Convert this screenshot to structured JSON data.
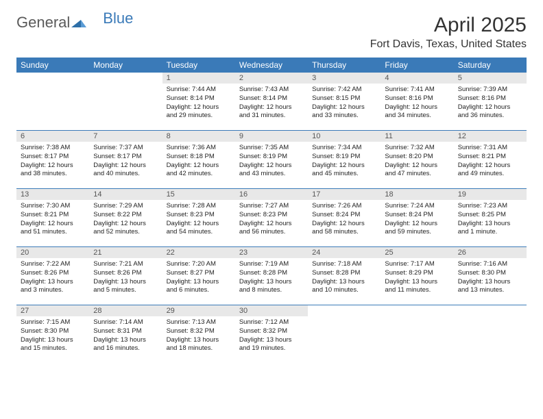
{
  "brand": {
    "part1": "General",
    "part2": "Blue"
  },
  "title": "April 2025",
  "location": "Fort Davis, Texas, United States",
  "colors": {
    "header_bg": "#3a7ab8",
    "header_text": "#ffffff",
    "daynum_bg": "#e8e8e8",
    "border": "#3a7ab8"
  },
  "day_headers": [
    "Sunday",
    "Monday",
    "Tuesday",
    "Wednesday",
    "Thursday",
    "Friday",
    "Saturday"
  ],
  "weeks": [
    [
      {
        "day": "",
        "sunrise": "",
        "sunset": "",
        "daylight": ""
      },
      {
        "day": "",
        "sunrise": "",
        "sunset": "",
        "daylight": ""
      },
      {
        "day": "1",
        "sunrise": "Sunrise: 7:44 AM",
        "sunset": "Sunset: 8:14 PM",
        "daylight": "Daylight: 12 hours and 29 minutes."
      },
      {
        "day": "2",
        "sunrise": "Sunrise: 7:43 AM",
        "sunset": "Sunset: 8:14 PM",
        "daylight": "Daylight: 12 hours and 31 minutes."
      },
      {
        "day": "3",
        "sunrise": "Sunrise: 7:42 AM",
        "sunset": "Sunset: 8:15 PM",
        "daylight": "Daylight: 12 hours and 33 minutes."
      },
      {
        "day": "4",
        "sunrise": "Sunrise: 7:41 AM",
        "sunset": "Sunset: 8:16 PM",
        "daylight": "Daylight: 12 hours and 34 minutes."
      },
      {
        "day": "5",
        "sunrise": "Sunrise: 7:39 AM",
        "sunset": "Sunset: 8:16 PM",
        "daylight": "Daylight: 12 hours and 36 minutes."
      }
    ],
    [
      {
        "day": "6",
        "sunrise": "Sunrise: 7:38 AM",
        "sunset": "Sunset: 8:17 PM",
        "daylight": "Daylight: 12 hours and 38 minutes."
      },
      {
        "day": "7",
        "sunrise": "Sunrise: 7:37 AM",
        "sunset": "Sunset: 8:17 PM",
        "daylight": "Daylight: 12 hours and 40 minutes."
      },
      {
        "day": "8",
        "sunrise": "Sunrise: 7:36 AM",
        "sunset": "Sunset: 8:18 PM",
        "daylight": "Daylight: 12 hours and 42 minutes."
      },
      {
        "day": "9",
        "sunrise": "Sunrise: 7:35 AM",
        "sunset": "Sunset: 8:19 PM",
        "daylight": "Daylight: 12 hours and 43 minutes."
      },
      {
        "day": "10",
        "sunrise": "Sunrise: 7:34 AM",
        "sunset": "Sunset: 8:19 PM",
        "daylight": "Daylight: 12 hours and 45 minutes."
      },
      {
        "day": "11",
        "sunrise": "Sunrise: 7:32 AM",
        "sunset": "Sunset: 8:20 PM",
        "daylight": "Daylight: 12 hours and 47 minutes."
      },
      {
        "day": "12",
        "sunrise": "Sunrise: 7:31 AM",
        "sunset": "Sunset: 8:21 PM",
        "daylight": "Daylight: 12 hours and 49 minutes."
      }
    ],
    [
      {
        "day": "13",
        "sunrise": "Sunrise: 7:30 AM",
        "sunset": "Sunset: 8:21 PM",
        "daylight": "Daylight: 12 hours and 51 minutes."
      },
      {
        "day": "14",
        "sunrise": "Sunrise: 7:29 AM",
        "sunset": "Sunset: 8:22 PM",
        "daylight": "Daylight: 12 hours and 52 minutes."
      },
      {
        "day": "15",
        "sunrise": "Sunrise: 7:28 AM",
        "sunset": "Sunset: 8:23 PM",
        "daylight": "Daylight: 12 hours and 54 minutes."
      },
      {
        "day": "16",
        "sunrise": "Sunrise: 7:27 AM",
        "sunset": "Sunset: 8:23 PM",
        "daylight": "Daylight: 12 hours and 56 minutes."
      },
      {
        "day": "17",
        "sunrise": "Sunrise: 7:26 AM",
        "sunset": "Sunset: 8:24 PM",
        "daylight": "Daylight: 12 hours and 58 minutes."
      },
      {
        "day": "18",
        "sunrise": "Sunrise: 7:24 AM",
        "sunset": "Sunset: 8:24 PM",
        "daylight": "Daylight: 12 hours and 59 minutes."
      },
      {
        "day": "19",
        "sunrise": "Sunrise: 7:23 AM",
        "sunset": "Sunset: 8:25 PM",
        "daylight": "Daylight: 13 hours and 1 minute."
      }
    ],
    [
      {
        "day": "20",
        "sunrise": "Sunrise: 7:22 AM",
        "sunset": "Sunset: 8:26 PM",
        "daylight": "Daylight: 13 hours and 3 minutes."
      },
      {
        "day": "21",
        "sunrise": "Sunrise: 7:21 AM",
        "sunset": "Sunset: 8:26 PM",
        "daylight": "Daylight: 13 hours and 5 minutes."
      },
      {
        "day": "22",
        "sunrise": "Sunrise: 7:20 AM",
        "sunset": "Sunset: 8:27 PM",
        "daylight": "Daylight: 13 hours and 6 minutes."
      },
      {
        "day": "23",
        "sunrise": "Sunrise: 7:19 AM",
        "sunset": "Sunset: 8:28 PM",
        "daylight": "Daylight: 13 hours and 8 minutes."
      },
      {
        "day": "24",
        "sunrise": "Sunrise: 7:18 AM",
        "sunset": "Sunset: 8:28 PM",
        "daylight": "Daylight: 13 hours and 10 minutes."
      },
      {
        "day": "25",
        "sunrise": "Sunrise: 7:17 AM",
        "sunset": "Sunset: 8:29 PM",
        "daylight": "Daylight: 13 hours and 11 minutes."
      },
      {
        "day": "26",
        "sunrise": "Sunrise: 7:16 AM",
        "sunset": "Sunset: 8:30 PM",
        "daylight": "Daylight: 13 hours and 13 minutes."
      }
    ],
    [
      {
        "day": "27",
        "sunrise": "Sunrise: 7:15 AM",
        "sunset": "Sunset: 8:30 PM",
        "daylight": "Daylight: 13 hours and 15 minutes."
      },
      {
        "day": "28",
        "sunrise": "Sunrise: 7:14 AM",
        "sunset": "Sunset: 8:31 PM",
        "daylight": "Daylight: 13 hours and 16 minutes."
      },
      {
        "day": "29",
        "sunrise": "Sunrise: 7:13 AM",
        "sunset": "Sunset: 8:32 PM",
        "daylight": "Daylight: 13 hours and 18 minutes."
      },
      {
        "day": "30",
        "sunrise": "Sunrise: 7:12 AM",
        "sunset": "Sunset: 8:32 PM",
        "daylight": "Daylight: 13 hours and 19 minutes."
      },
      {
        "day": "",
        "sunrise": "",
        "sunset": "",
        "daylight": ""
      },
      {
        "day": "",
        "sunrise": "",
        "sunset": "",
        "daylight": ""
      },
      {
        "day": "",
        "sunrise": "",
        "sunset": "",
        "daylight": ""
      }
    ]
  ]
}
